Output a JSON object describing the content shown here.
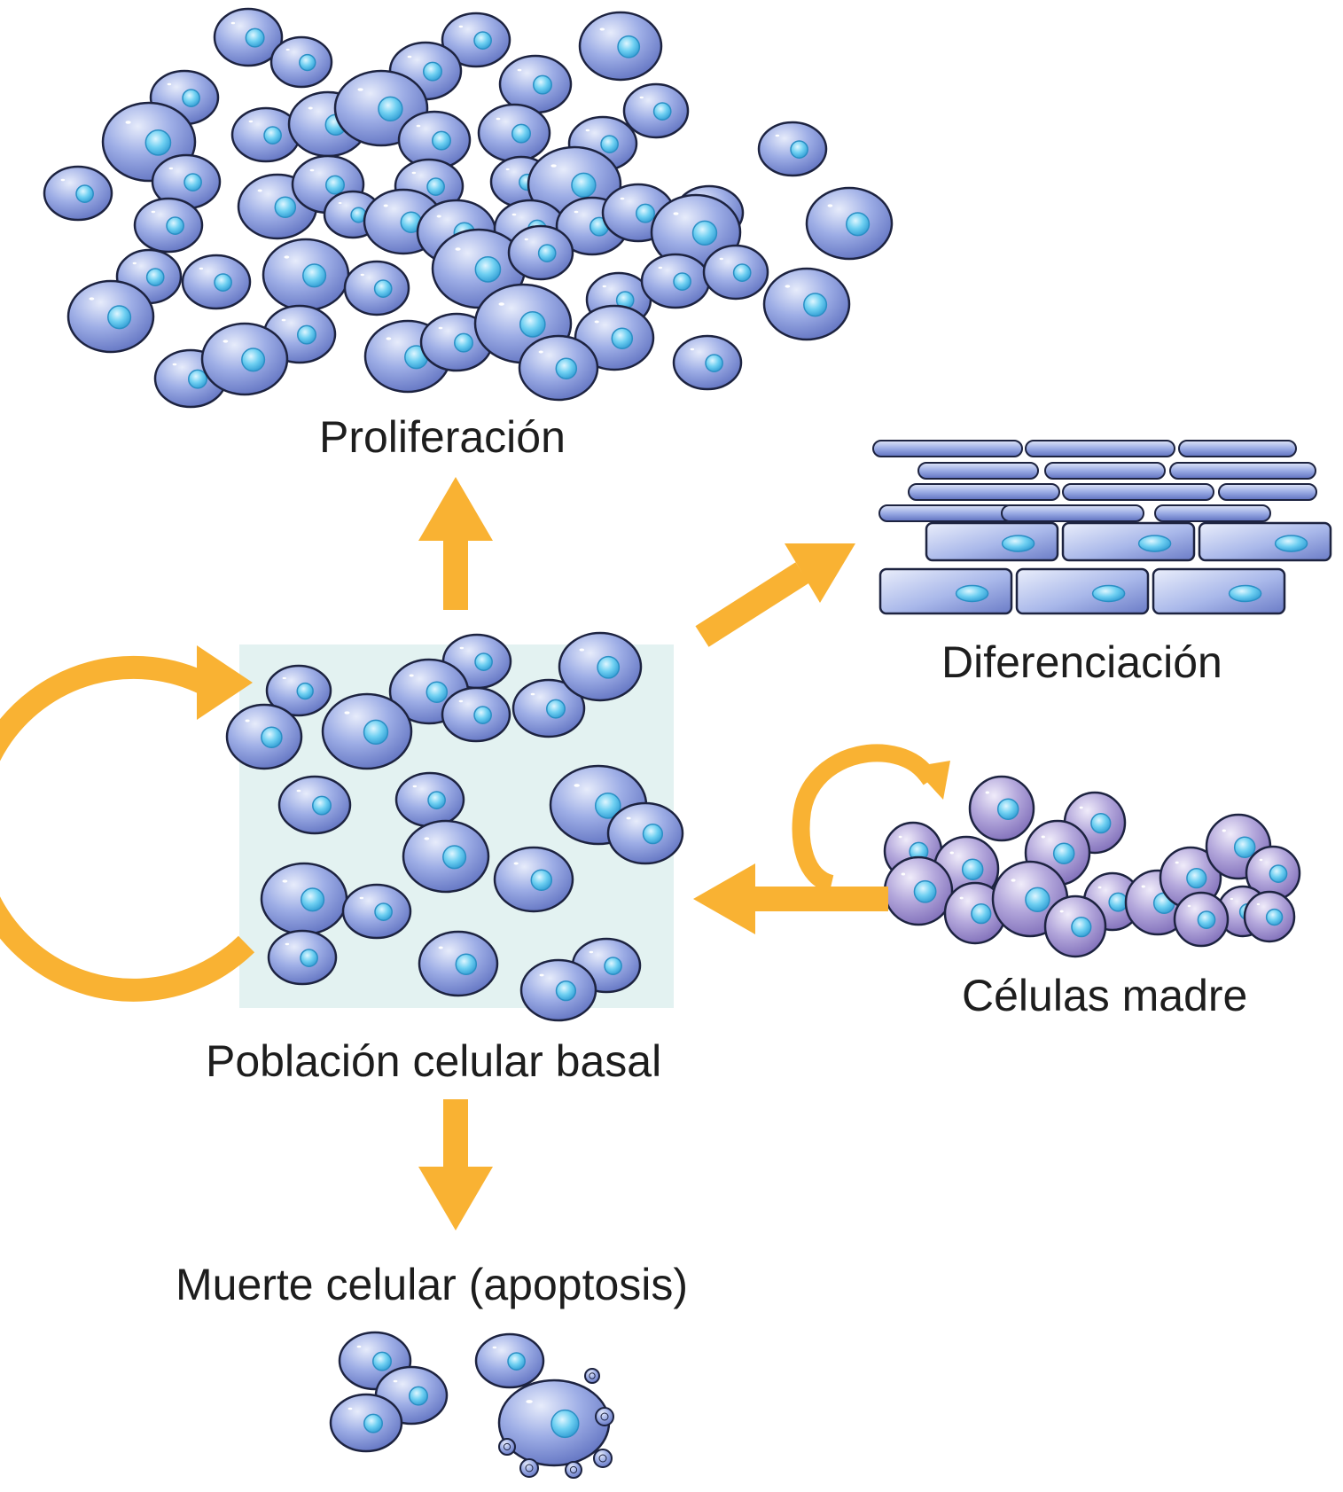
{
  "labels": {
    "proliferation": "Proliferación",
    "differentiation": "Diferenciación",
    "stem_cells": "Células madre",
    "basal_population": "Población celular basal",
    "cell_death": "Muerte celular (apoptosis)"
  },
  "colors": {
    "arrow": "#f9b233",
    "basal_box": "#e3f2f1",
    "cell_fill": "#8d9fdd",
    "cell_stroke": "#1d2340",
    "nucleus": "#5ec4ea",
    "stem_cell_fill": "#a99bd4",
    "text": "#1d1d1d"
  }
}
